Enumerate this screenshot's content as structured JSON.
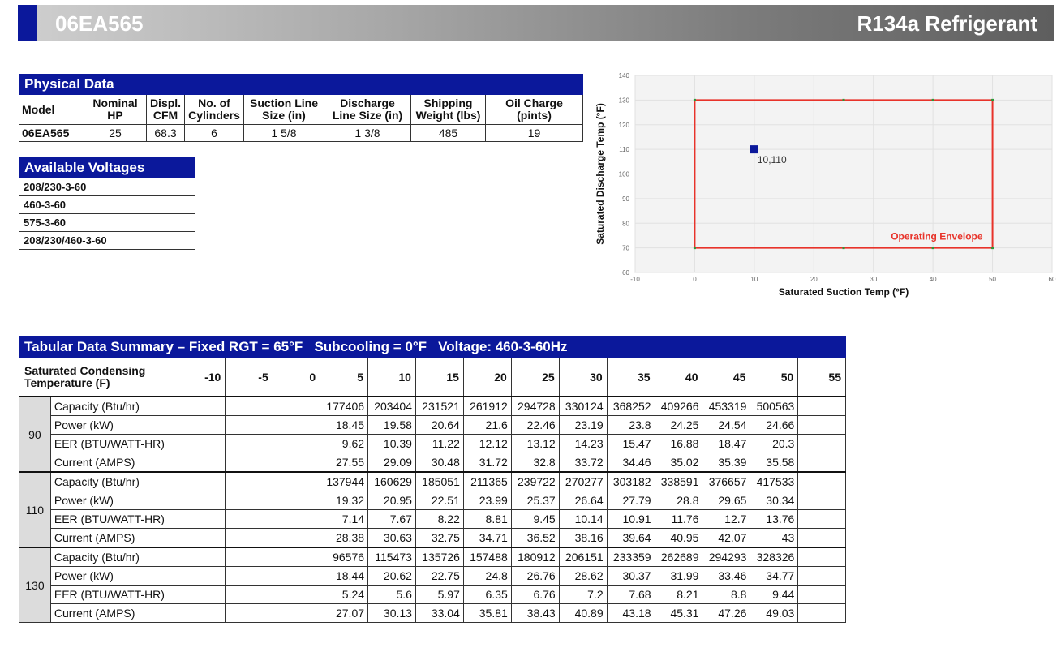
{
  "header": {
    "model": "06EA565",
    "refrigerant": "R134a Refrigerant"
  },
  "physical": {
    "title": "Physical Data",
    "headers": [
      "Model",
      "Nominal HP",
      "Displ. CFM",
      "No. of Cylinders",
      "Suction Line Size (in)",
      "Discharge Line Size (in)",
      "Shipping Weight (lbs)",
      "Oil Charge (pints)"
    ],
    "values": [
      "06EA565",
      "25",
      "68.3",
      "6",
      "1 5/8",
      "1 3/8",
      "485",
      "19"
    ]
  },
  "voltages": {
    "title": "Available Voltages",
    "items": [
      "208/230-3-60",
      "460-3-60",
      "575-3-60",
      "208/230/460-3-60"
    ]
  },
  "chart_data": {
    "type": "scatter",
    "xlabel": "Saturated Suction Temp (°F)",
    "ylabel": "Saturated Discharge Temp (°F)",
    "xlim": [
      -10,
      60
    ],
    "ylim": [
      60,
      140
    ],
    "xticks": [
      -10,
      0,
      10,
      20,
      30,
      40,
      50,
      60
    ],
    "yticks": [
      60,
      70,
      80,
      90,
      100,
      110,
      120,
      130,
      140
    ],
    "grid": true,
    "envelope": {
      "name": "Operating Envelope",
      "color": "#e8332a",
      "points": [
        [
          0,
          70
        ],
        [
          0,
          130
        ],
        [
          25,
          130
        ],
        [
          40,
          130
        ],
        [
          50,
          130
        ],
        [
          50,
          70
        ],
        [
          40,
          70
        ],
        [
          25,
          70
        ]
      ]
    },
    "point": {
      "x": 10,
      "y": 110,
      "label": "10,110",
      "color": "#0b189b"
    }
  },
  "tabular": {
    "title": "Tabular Data Summary – Fixed RGT = 65°F   Subcooling = 0°F   Voltage: 460-3-60Hz",
    "row_header": "Saturated Condensing Temperature (F)",
    "columns": [
      "-10",
      "-5",
      "0",
      "5",
      "10",
      "15",
      "20",
      "25",
      "30",
      "35",
      "40",
      "45",
      "50",
      "55"
    ],
    "groups": [
      {
        "temp": "90",
        "rows": [
          {
            "label": "Capacity (Btu/hr)",
            "values": [
              "",
              "",
              "",
              "177406",
              "203404",
              "231521",
              "261912",
              "294728",
              "330124",
              "368252",
              "409266",
              "453319",
              "500563",
              ""
            ]
          },
          {
            "label": "Power (kW)",
            "values": [
              "",
              "",
              "",
              "18.45",
              "19.58",
              "20.64",
              "21.6",
              "22.46",
              "23.19",
              "23.8",
              "24.25",
              "24.54",
              "24.66",
              ""
            ]
          },
          {
            "label": "EER (BTU/WATT-HR)",
            "values": [
              "",
              "",
              "",
              "9.62",
              "10.39",
              "11.22",
              "12.12",
              "13.12",
              "14.23",
              "15.47",
              "16.88",
              "18.47",
              "20.3",
              ""
            ]
          },
          {
            "label": "Current (AMPS)",
            "values": [
              "",
              "",
              "",
              "27.55",
              "29.09",
              "30.48",
              "31.72",
              "32.8",
              "33.72",
              "34.46",
              "35.02",
              "35.39",
              "35.58",
              ""
            ]
          }
        ]
      },
      {
        "temp": "110",
        "rows": [
          {
            "label": "Capacity (Btu/hr)",
            "values": [
              "",
              "",
              "",
              "137944",
              "160629",
              "185051",
              "211365",
              "239722",
              "270277",
              "303182",
              "338591",
              "376657",
              "417533",
              ""
            ]
          },
          {
            "label": "Power (kW)",
            "values": [
              "",
              "",
              "",
              "19.32",
              "20.95",
              "22.51",
              "23.99",
              "25.37",
              "26.64",
              "27.79",
              "28.8",
              "29.65",
              "30.34",
              ""
            ]
          },
          {
            "label": "EER (BTU/WATT-HR)",
            "values": [
              "",
              "",
              "",
              "7.14",
              "7.67",
              "8.22",
              "8.81",
              "9.45",
              "10.14",
              "10.91",
              "11.76",
              "12.7",
              "13.76",
              ""
            ]
          },
          {
            "label": "Current (AMPS)",
            "values": [
              "",
              "",
              "",
              "28.38",
              "30.63",
              "32.75",
              "34.71",
              "36.52",
              "38.16",
              "39.64",
              "40.95",
              "42.07",
              "43",
              ""
            ]
          }
        ]
      },
      {
        "temp": "130",
        "rows": [
          {
            "label": "Capacity (Btu/hr)",
            "values": [
              "",
              "",
              "",
              "96576",
              "115473",
              "135726",
              "157488",
              "180912",
              "206151",
              "233359",
              "262689",
              "294293",
              "328326",
              ""
            ]
          },
          {
            "label": "Power (kW)",
            "values": [
              "",
              "",
              "",
              "18.44",
              "20.62",
              "22.75",
              "24.8",
              "26.76",
              "28.62",
              "30.37",
              "31.99",
              "33.46",
              "34.77",
              ""
            ]
          },
          {
            "label": "EER (BTU/WATT-HR)",
            "values": [
              "",
              "",
              "",
              "5.24",
              "5.6",
              "5.97",
              "6.35",
              "6.76",
              "7.2",
              "7.68",
              "8.21",
              "8.8",
              "9.44",
              ""
            ]
          },
          {
            "label": "Current (AMPS)",
            "values": [
              "",
              "",
              "",
              "27.07",
              "30.13",
              "33.04",
              "35.81",
              "38.43",
              "40.89",
              "43.18",
              "45.31",
              "47.26",
              "49.03",
              ""
            ]
          }
        ]
      }
    ]
  }
}
